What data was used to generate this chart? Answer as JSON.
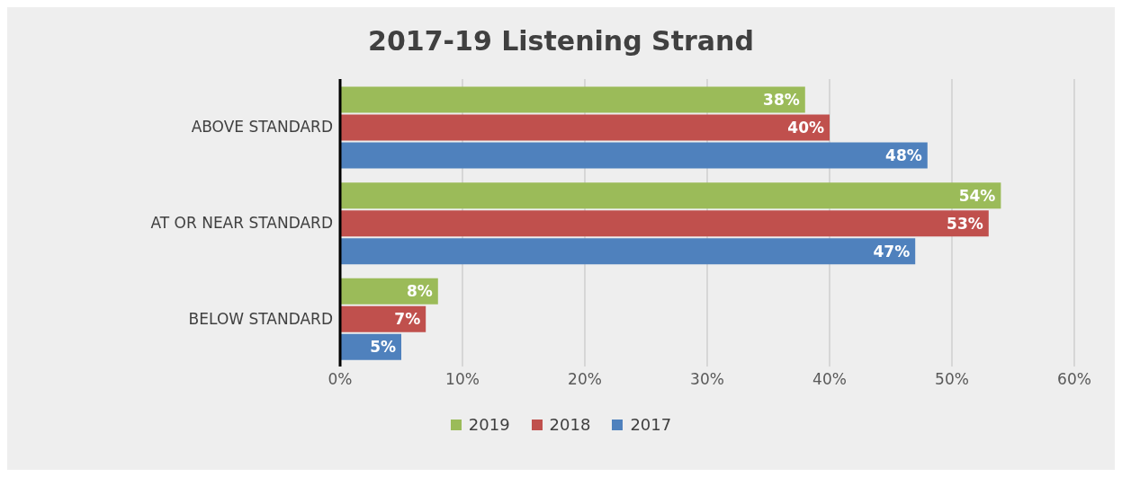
{
  "chart_data": {
    "type": "bar",
    "orientation": "horizontal",
    "title": "2017-19 Listening Strand",
    "categories": [
      "ABOVE STANDARD",
      "AT OR NEAR STANDARD",
      "BELOW STANDARD"
    ],
    "series": [
      {
        "name": "2019",
        "color": "#9bbb59",
        "values": [
          38,
          54,
          8
        ],
        "value_labels": [
          "38%",
          "54%",
          "8%"
        ]
      },
      {
        "name": "2018",
        "color": "#c0504d",
        "values": [
          40,
          53,
          7
        ],
        "value_labels": [
          "40%",
          "53%",
          "7%"
        ]
      },
      {
        "name": "2017",
        "color": "#4f81bd",
        "values": [
          48,
          47,
          5
        ],
        "value_labels": [
          "48%",
          "47%",
          "5%"
        ]
      }
    ],
    "xlim": [
      0,
      60
    ],
    "xticks": [
      {
        "value": 0,
        "label": "0%"
      },
      {
        "value": 10,
        "label": "10%"
      },
      {
        "value": 20,
        "label": "20%"
      },
      {
        "value": 30,
        "label": "30%"
      },
      {
        "value": 40,
        "label": "40%"
      },
      {
        "value": 50,
        "label": "50%"
      },
      {
        "value": 60,
        "label": "60%"
      }
    ],
    "grid": "x",
    "legend": "bottom"
  }
}
